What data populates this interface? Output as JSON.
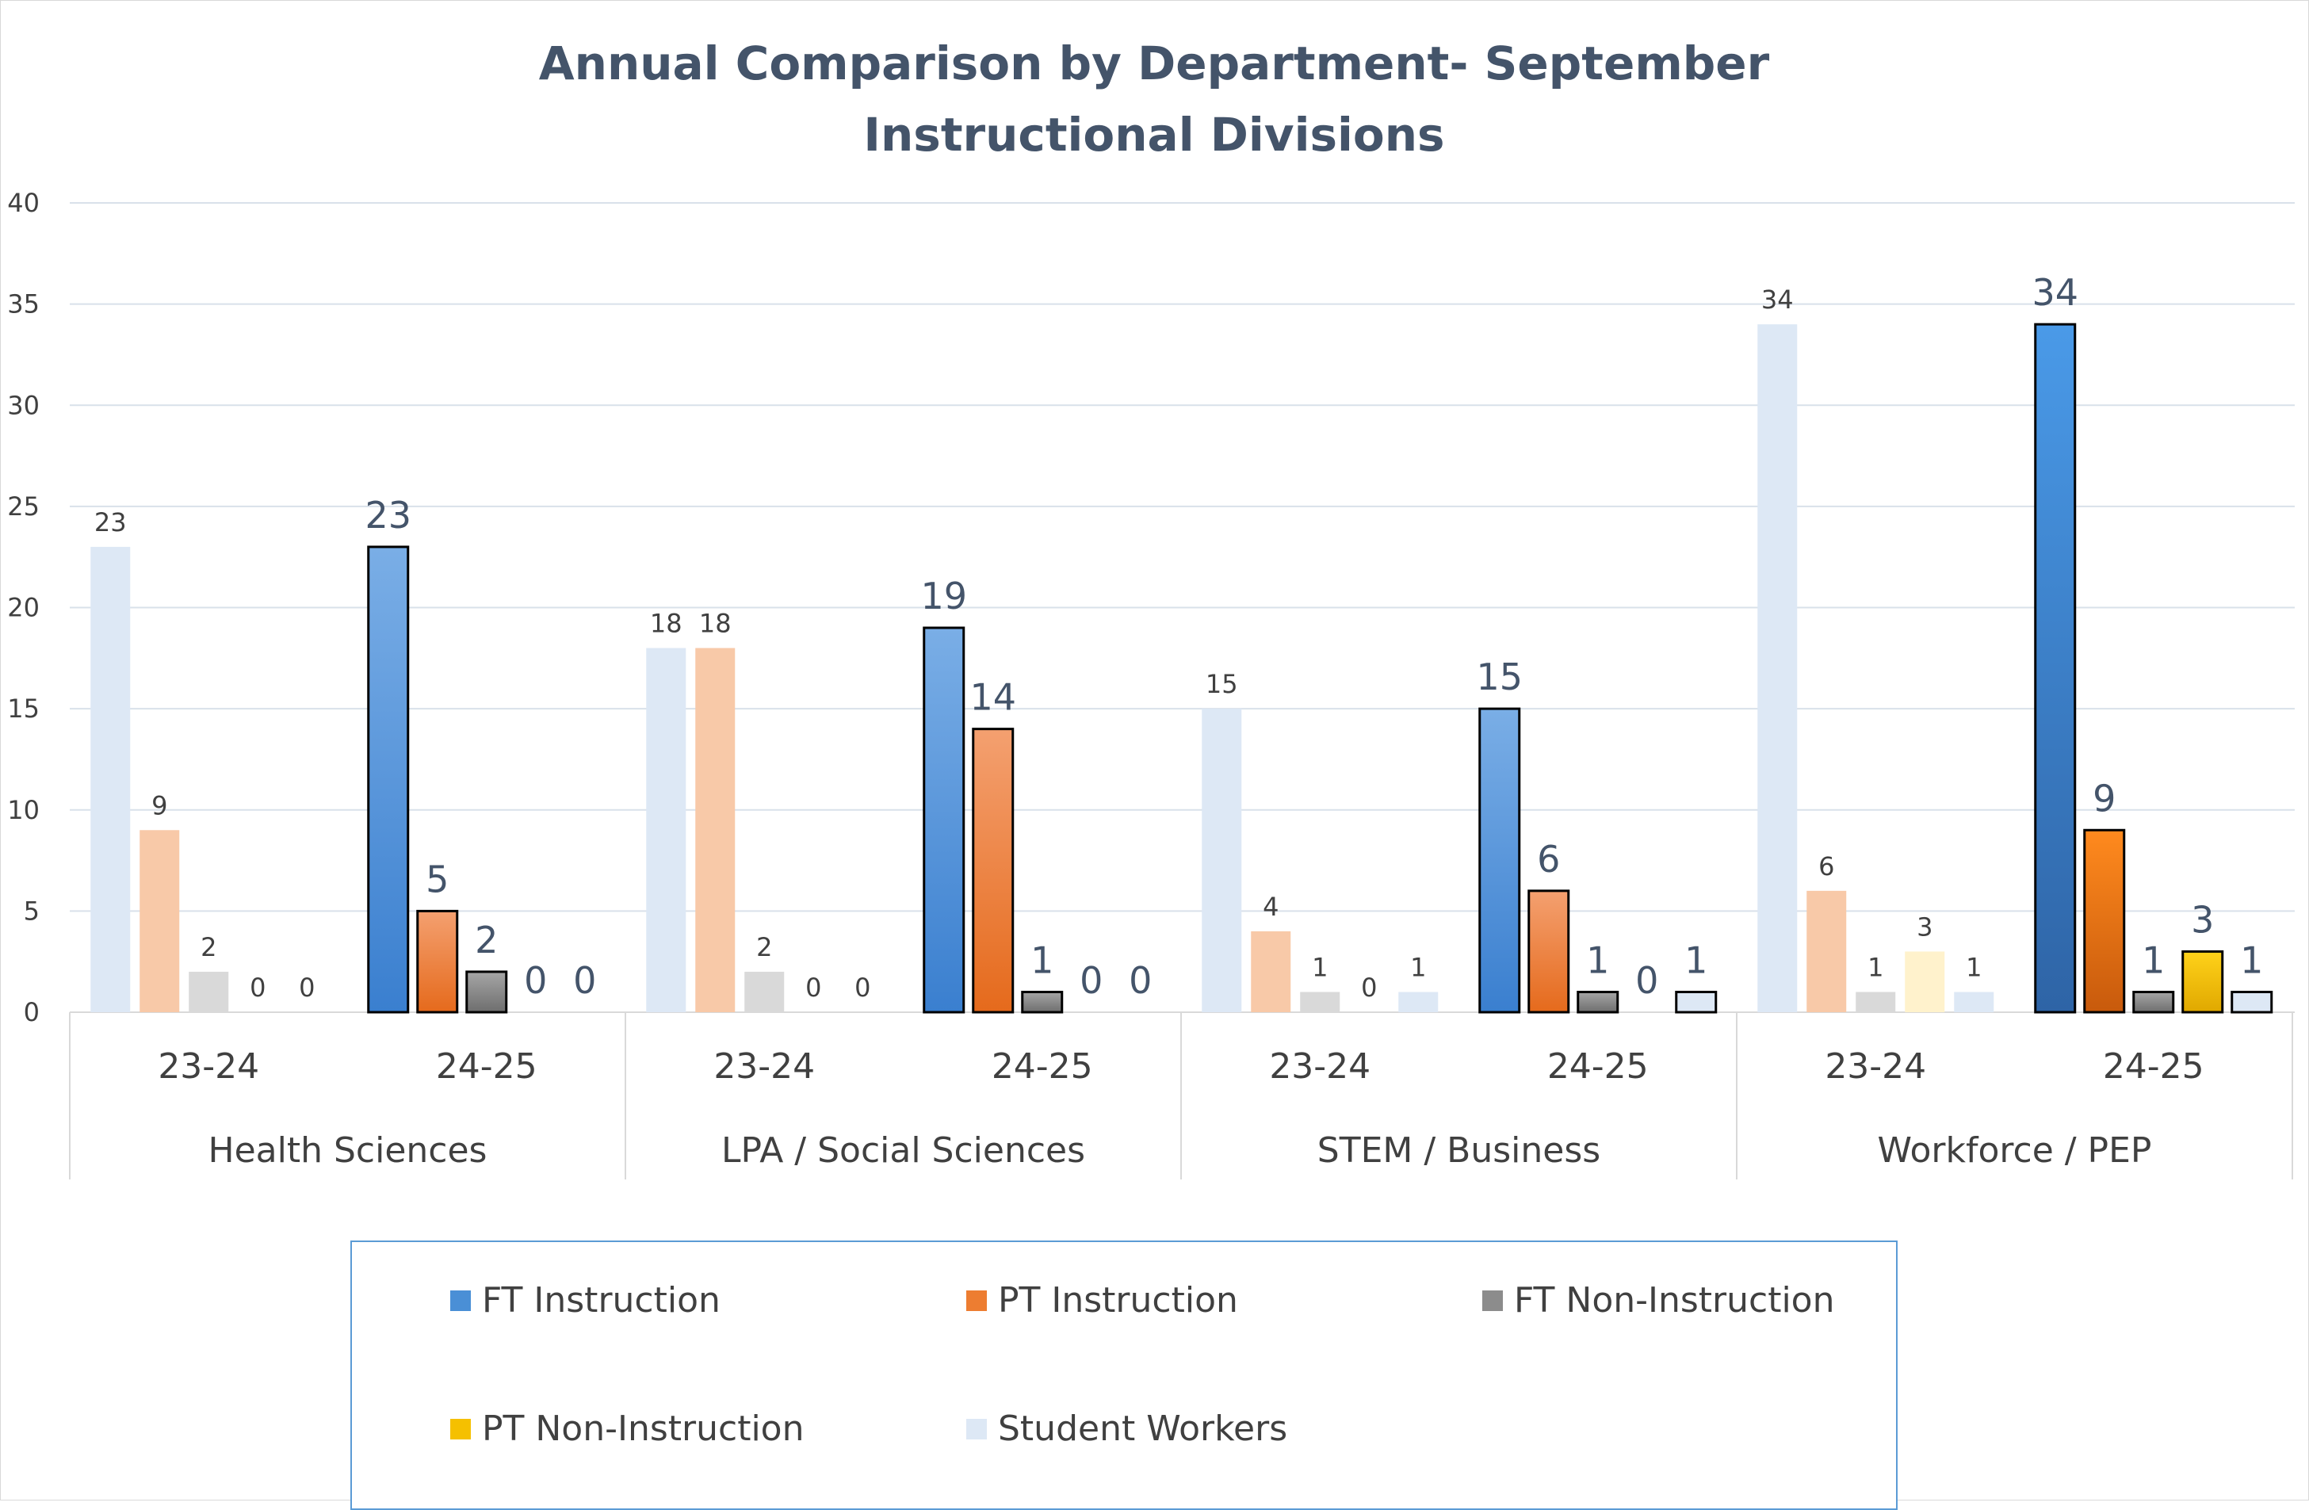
{
  "chart_data": {
    "type": "bar",
    "title": [
      "Annual Comparison by Department- September",
      "Instructional Divisions"
    ],
    "ylim": [
      0,
      40
    ],
    "yticks": [
      0,
      5,
      10,
      15,
      20,
      25,
      30,
      35,
      40
    ],
    "grid": true,
    "legend_position": "bottom",
    "groups": [
      {
        "name": "Health Sciences",
        "years": [
          {
            "year": "23-24",
            "values": [
              23,
              9,
              2,
              0,
              0
            ]
          },
          {
            "year": "24-25",
            "values": [
              23,
              5,
              2,
              0,
              0
            ]
          }
        ]
      },
      {
        "name": "LPA / Social Sciences",
        "years": [
          {
            "year": "23-24",
            "values": [
              18,
              18,
              2,
              0,
              0
            ]
          },
          {
            "year": "24-25",
            "values": [
              19,
              14,
              1,
              0,
              0
            ]
          }
        ]
      },
      {
        "name": "STEM / Business",
        "years": [
          {
            "year": "23-24",
            "values": [
              15,
              4,
              1,
              0,
              1
            ]
          },
          {
            "year": "24-25",
            "values": [
              15,
              6,
              1,
              0,
              1
            ]
          }
        ]
      },
      {
        "name": "Workforce / PEP",
        "years": [
          {
            "year": "23-24",
            "values": [
              34,
              6,
              1,
              3,
              1
            ]
          },
          {
            "year": "24-25",
            "values": [
              34,
              9,
              1,
              3,
              1
            ]
          }
        ]
      }
    ],
    "series": [
      {
        "name": "FT Instruction",
        "color": "#4a8fd6"
      },
      {
        "name": "PT Instruction",
        "color": "#ed7d31"
      },
      {
        "name": "FT Non-Instruction",
        "color": "#8c8c8c"
      },
      {
        "name": "PT Non-Instruction",
        "color": "#f5c000"
      },
      {
        "name": "Student Workers",
        "color": "#dde8f5"
      }
    ],
    "faded_colors": [
      "#dde8f5",
      "#f8c9a8",
      "#d9d9d9",
      "#fff2cc",
      "#dde8f5"
    ]
  }
}
